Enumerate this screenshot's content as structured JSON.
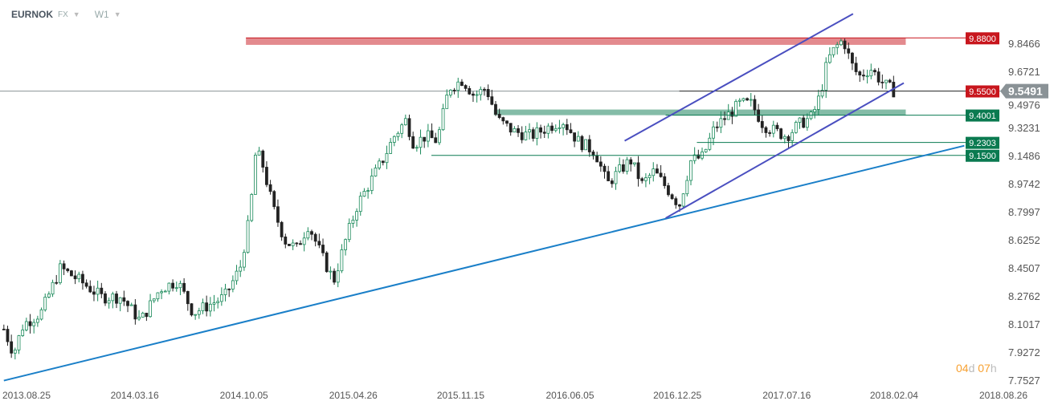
{
  "header": {
    "symbol": "EURNOK",
    "market": "FX",
    "timeframe": "W1"
  },
  "timer": {
    "days": "04",
    "days_unit": "d",
    "hours": "07",
    "hours_unit": "h"
  },
  "chart_data": {
    "type": "candlestick",
    "ylim": [
      7.7527,
      9.95
    ],
    "xlim": [
      2013.51,
      2018.65
    ],
    "y_ticks": [
      "9.8466",
      "9.6721",
      "9.4976",
      "9.3231",
      "9.1486",
      "8.9742",
      "8.7997",
      "8.6252",
      "8.4507",
      "8.2762",
      "8.1017",
      "7.9272",
      "7.7527"
    ],
    "x_ticks": [
      {
        "label": "2013.08.25",
        "t": 2013.646
      },
      {
        "label": "2014.03.16",
        "t": 2014.2
      },
      {
        "label": "2014.10.05",
        "t": 2014.76
      },
      {
        "label": "2015.04.26",
        "t": 2015.32
      },
      {
        "label": "2015.11.15",
        "t": 2015.87
      },
      {
        "label": "2016.06.05",
        "t": 2016.43
      },
      {
        "label": "2016.12.25",
        "t": 2016.98
      },
      {
        "label": "2017.07.16",
        "t": 2017.54
      },
      {
        "label": "2018.02.04",
        "t": 2018.09
      },
      {
        "label": "2018.08.26",
        "t": 2018.65
      }
    ],
    "price_path": [
      [
        2013.53,
        8.07
      ],
      [
        2013.58,
        7.92
      ],
      [
        2013.63,
        8.1
      ],
      [
        2013.72,
        8.17
      ],
      [
        2013.82,
        8.45
      ],
      [
        2013.92,
        8.37
      ],
      [
        2014.03,
        8.27
      ],
      [
        2014.13,
        8.27
      ],
      [
        2014.23,
        8.12
      ],
      [
        2014.33,
        8.32
      ],
      [
        2014.42,
        8.37
      ],
      [
        2014.5,
        8.17
      ],
      [
        2014.58,
        8.22
      ],
      [
        2014.66,
        8.27
      ],
      [
        2014.74,
        8.45
      ],
      [
        2014.79,
        8.77
      ],
      [
        2014.82,
        9.17
      ],
      [
        2014.85,
        9.12
      ],
      [
        2014.91,
        8.82
      ],
      [
        2014.97,
        8.62
      ],
      [
        2015.03,
        8.57
      ],
      [
        2015.09,
        8.72
      ],
      [
        2015.16,
        8.52
      ],
      [
        2015.22,
        8.37
      ],
      [
        2015.28,
        8.62
      ],
      [
        2015.34,
        8.84
      ],
      [
        2015.4,
        8.97
      ],
      [
        2015.47,
        9.12
      ],
      [
        2015.53,
        9.27
      ],
      [
        2015.59,
        9.37
      ],
      [
        2015.63,
        9.22
      ],
      [
        2015.69,
        9.27
      ],
      [
        2015.75,
        9.24
      ],
      [
        2015.81,
        9.57
      ],
      [
        2015.88,
        9.62
      ],
      [
        2015.94,
        9.52
      ],
      [
        2016.0,
        9.57
      ],
      [
        2016.06,
        9.37
      ],
      [
        2016.14,
        9.3
      ],
      [
        2016.23,
        9.27
      ],
      [
        2016.31,
        9.32
      ],
      [
        2016.39,
        9.37
      ],
      [
        2016.47,
        9.24
      ],
      [
        2016.56,
        9.17
      ],
      [
        2016.62,
        8.97
      ],
      [
        2016.68,
        9.05
      ],
      [
        2016.74,
        9.12
      ],
      [
        2016.8,
        8.97
      ],
      [
        2016.86,
        9.05
      ],
      [
        2016.93,
        8.94
      ],
      [
        2016.99,
        8.84
      ],
      [
        2017.05,
        9.12
      ],
      [
        2017.11,
        9.14
      ],
      [
        2017.17,
        9.32
      ],
      [
        2017.23,
        9.39
      ],
      [
        2017.3,
        9.47
      ],
      [
        2017.36,
        9.47
      ],
      [
        2017.42,
        9.34
      ],
      [
        2017.48,
        9.3
      ],
      [
        2017.54,
        9.27
      ],
      [
        2017.6,
        9.34
      ],
      [
        2017.67,
        9.39
      ],
      [
        2017.71,
        9.52
      ],
      [
        2017.75,
        9.74
      ],
      [
        2017.79,
        9.82
      ],
      [
        2017.83,
        9.87
      ],
      [
        2017.87,
        9.72
      ],
      [
        2017.91,
        9.64
      ],
      [
        2017.97,
        9.69
      ],
      [
        2018.04,
        9.59
      ],
      [
        2018.09,
        9.55
      ]
    ],
    "current_price": "9.5491",
    "levels": [
      {
        "label": "9.8800",
        "price": 9.88,
        "from": 2014.77,
        "color": "#c8161d",
        "zone": [
          9.837,
          9.88
        ],
        "zone_to": 2018.15
      },
      {
        "label": "9.5500",
        "price": 9.55,
        "from": 2016.99,
        "color": "#c8161d",
        "line_color": "#333333"
      },
      {
        "label": "9.4001",
        "price": 9.4001,
        "from": 2016.92,
        "color": "#0a7a50",
        "zone": [
          9.4,
          9.435
        ],
        "zone_from": 2016.04,
        "zone_to": 2018.15
      },
      {
        "label": "9.2303",
        "price": 9.2303,
        "from": 2017.08,
        "color": "#0a7a50"
      },
      {
        "label": "9.1500",
        "price": 9.15,
        "from": 2015.72,
        "color": "#0a7a50"
      }
    ],
    "trendlines": [
      {
        "color": "#1a7fc8",
        "p1": [
          2013.53,
          7.75
        ],
        "p2": [
          2018.45,
          9.21
        ]
      },
      {
        "color": "#4a4fc0",
        "p1": [
          2016.71,
          9.24
        ],
        "p2": [
          2017.88,
          10.03
        ]
      },
      {
        "color": "#4a4fc0",
        "p1": [
          2016.92,
          8.76
        ],
        "p2": [
          2018.14,
          9.6
        ]
      }
    ],
    "colors": {
      "up": "#1a8a5a",
      "down": "#222222",
      "current": "#8a9296"
    }
  }
}
